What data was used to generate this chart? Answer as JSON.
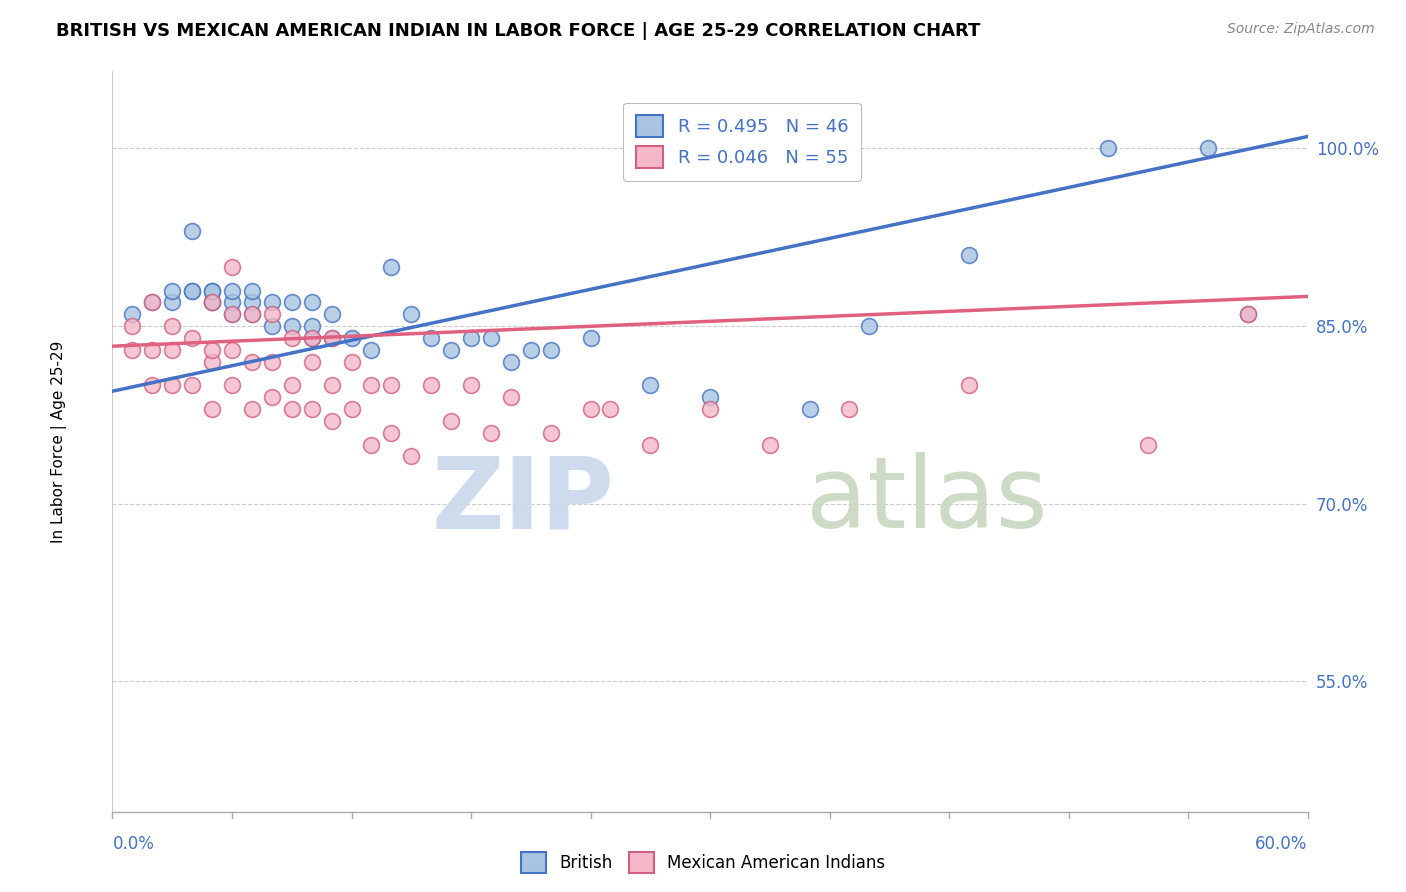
{
  "title": "BRITISH VS MEXICAN AMERICAN INDIAN IN LABOR FORCE | AGE 25-29 CORRELATION CHART",
  "source": "Source: ZipAtlas.com",
  "ylabel": "In Labor Force | Age 25-29",
  "ytick_labels": [
    "55.0%",
    "70.0%",
    "85.0%",
    "100.0%"
  ],
  "ytick_values": [
    0.55,
    0.7,
    0.85,
    1.0
  ],
  "xlim": [
    0.0,
    0.6
  ],
  "ylim": [
    0.44,
    1.065
  ],
  "british_color": "#a8c4e0",
  "mexican_color": "#f4b8c8",
  "british_line_color": "#4472C4",
  "mexican_line_color": "#E06080",
  "british_R": 0.495,
  "british_N": 46,
  "mexican_R": 0.046,
  "mexican_N": 55,
  "british_x": [
    0.01,
    0.02,
    0.03,
    0.03,
    0.04,
    0.04,
    0.04,
    0.05,
    0.05,
    0.05,
    0.05,
    0.06,
    0.06,
    0.06,
    0.07,
    0.07,
    0.07,
    0.08,
    0.08,
    0.09,
    0.09,
    0.1,
    0.1,
    0.1,
    0.11,
    0.11,
    0.12,
    0.13,
    0.14,
    0.15,
    0.16,
    0.17,
    0.18,
    0.19,
    0.2,
    0.21,
    0.22,
    0.24,
    0.27,
    0.3,
    0.35,
    0.38,
    0.43,
    0.5,
    0.55,
    0.57
  ],
  "british_y": [
    0.86,
    0.87,
    0.87,
    0.88,
    0.88,
    0.88,
    0.93,
    0.87,
    0.87,
    0.88,
    0.88,
    0.86,
    0.87,
    0.88,
    0.86,
    0.87,
    0.88,
    0.85,
    0.87,
    0.85,
    0.87,
    0.84,
    0.85,
    0.87,
    0.84,
    0.86,
    0.84,
    0.83,
    0.9,
    0.86,
    0.84,
    0.83,
    0.84,
    0.84,
    0.82,
    0.83,
    0.83,
    0.84,
    0.8,
    0.79,
    0.78,
    0.85,
    0.91,
    1.0,
    1.0,
    0.86
  ],
  "mexican_x": [
    0.01,
    0.01,
    0.02,
    0.02,
    0.02,
    0.03,
    0.03,
    0.03,
    0.04,
    0.04,
    0.05,
    0.05,
    0.05,
    0.05,
    0.06,
    0.06,
    0.06,
    0.06,
    0.07,
    0.07,
    0.07,
    0.08,
    0.08,
    0.08,
    0.09,
    0.09,
    0.09,
    0.1,
    0.1,
    0.1,
    0.11,
    0.11,
    0.11,
    0.12,
    0.12,
    0.13,
    0.13,
    0.14,
    0.14,
    0.15,
    0.16,
    0.17,
    0.18,
    0.19,
    0.2,
    0.22,
    0.24,
    0.25,
    0.27,
    0.3,
    0.33,
    0.37,
    0.43,
    0.52,
    0.57
  ],
  "mexican_y": [
    0.83,
    0.85,
    0.8,
    0.83,
    0.87,
    0.8,
    0.83,
    0.85,
    0.8,
    0.84,
    0.78,
    0.82,
    0.83,
    0.87,
    0.8,
    0.83,
    0.86,
    0.9,
    0.78,
    0.82,
    0.86,
    0.79,
    0.82,
    0.86,
    0.78,
    0.8,
    0.84,
    0.78,
    0.82,
    0.84,
    0.77,
    0.8,
    0.84,
    0.78,
    0.82,
    0.75,
    0.8,
    0.76,
    0.8,
    0.74,
    0.8,
    0.77,
    0.8,
    0.76,
    0.79,
    0.76,
    0.78,
    0.78,
    0.75,
    0.78,
    0.75,
    0.78,
    0.8,
    0.75,
    0.86
  ]
}
